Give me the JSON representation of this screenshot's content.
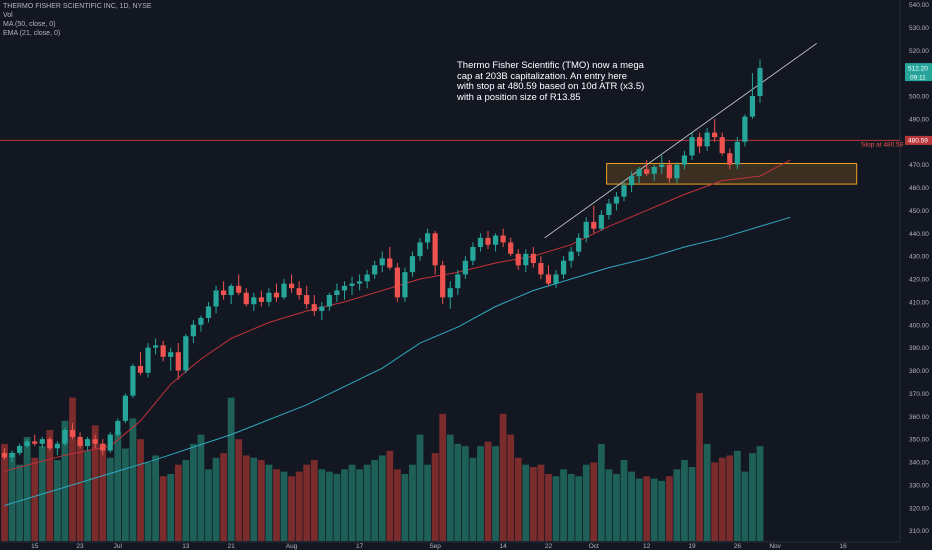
{
  "legend": {
    "title": "THERMO FISHER SCIENTIFIC INC, 1D, NYSE",
    "vol": "Vol",
    "ma": "MA (50, close, 0)",
    "ema": "EMA (21, close, 0)"
  },
  "annotation": {
    "lines": [
      "Thermo Fisher Scientific (TMO) now a mega",
      "cap at 203B capitalization. An entry here",
      "with stop at 480.59 based on 10d ATR (x3.5)",
      "with a position size of R13.85"
    ]
  },
  "colors": {
    "background": "#131722",
    "up": "#26a69a",
    "down": "#ef5350",
    "vol_up": "#1e5f58",
    "vol_down": "#7a2b2b",
    "ma50": "#2fa8bd",
    "ema21": "#c2323a",
    "stop_line": "#b8383b",
    "zone": "#f0a020",
    "trendline": "#d1d4dc",
    "axis_text": "#b2b5be"
  },
  "chart_data": {
    "type": "candlestick",
    "price_axis": {
      "min": 305,
      "max": 540,
      "ticks": [
        540,
        530,
        520,
        510,
        500,
        490,
        480,
        470,
        460,
        450,
        440,
        430,
        420,
        410,
        400,
        390,
        380,
        370,
        360,
        350,
        340,
        330,
        320,
        310
      ]
    },
    "x_axis_labels": [
      {
        "label": "15",
        "index": 4
      },
      {
        "label": "23",
        "index": 10
      },
      {
        "label": "Jul",
        "index": 15
      },
      {
        "label": "13",
        "index": 24
      },
      {
        "label": "21",
        "index": 30
      },
      {
        "label": "Aug",
        "index": 38
      },
      {
        "label": "17",
        "index": 47
      },
      {
        "label": "Sep",
        "index": 57
      },
      {
        "label": "14",
        "index": 66
      },
      {
        "label": "22",
        "index": 72
      },
      {
        "label": "Oct",
        "index": 78
      },
      {
        "label": "12",
        "index": 85
      },
      {
        "label": "19",
        "index": 91
      },
      {
        "label": "26",
        "index": 97
      },
      {
        "label": "Nov",
        "index": 102
      },
      {
        "label": "16",
        "index": 111
      }
    ],
    "current_price_label": "512.20",
    "countdown_label": "09:11",
    "stop_level": {
      "value": 480.59,
      "axis_label": "480.59",
      "text": "Stop at 480.59"
    },
    "zone": {
      "from_index": 79.7,
      "to_index": 112.8,
      "low": 461.5,
      "high": 470.5
    },
    "trendline": {
      "from_index": 71.5,
      "from_value": 438,
      "to_index": 107.5,
      "to_value": 523
    },
    "candles": [
      [
        344,
        346,
        341,
        342
      ],
      [
        342,
        345,
        340,
        344
      ],
      [
        344,
        348,
        343,
        347
      ],
      [
        347,
        350,
        346,
        349
      ],
      [
        349,
        352,
        347,
        348
      ],
      [
        348,
        351,
        346,
        350
      ],
      [
        350,
        351,
        345,
        346
      ],
      [
        346,
        349,
        343,
        348
      ],
      [
        348,
        355,
        347,
        354
      ],
      [
        354,
        357,
        350,
        351
      ],
      [
        351,
        353,
        346,
        347
      ],
      [
        347,
        351,
        345,
        350
      ],
      [
        350,
        352,
        346,
        348
      ],
      [
        348,
        350,
        343,
        345
      ],
      [
        345,
        353,
        344,
        352
      ],
      [
        352,
        359,
        351,
        358
      ],
      [
        358,
        370,
        357,
        369
      ],
      [
        369,
        383,
        368,
        382
      ],
      [
        382,
        388,
        378,
        379
      ],
      [
        379,
        392,
        377,
        390
      ],
      [
        390,
        394,
        387,
        391
      ],
      [
        391,
        393,
        384,
        386
      ],
      [
        386,
        390,
        380,
        388
      ],
      [
        388,
        392,
        376,
        380
      ],
      [
        380,
        396,
        379,
        395
      ],
      [
        395,
        402,
        392,
        400
      ],
      [
        400,
        404,
        397,
        403
      ],
      [
        403,
        410,
        401,
        408
      ],
      [
        408,
        417,
        405,
        415
      ],
      [
        415,
        419,
        411,
        413
      ],
      [
        413,
        418,
        409,
        417
      ],
      [
        417,
        422,
        413,
        414
      ],
      [
        414,
        416,
        408,
        409
      ],
      [
        409,
        414,
        406,
        412
      ],
      [
        412,
        415,
        408,
        410
      ],
      [
        410,
        416,
        408,
        414
      ],
      [
        414,
        418,
        410,
        412
      ],
      [
        412,
        420,
        411,
        418
      ],
      [
        418,
        422,
        414,
        416
      ],
      [
        416,
        419,
        411,
        413
      ],
      [
        413,
        417,
        407,
        409
      ],
      [
        409,
        413,
        404,
        406
      ],
      [
        406,
        410,
        402,
        408
      ],
      [
        408,
        414,
        406,
        413
      ],
      [
        413,
        418,
        410,
        415
      ],
      [
        415,
        419,
        411,
        417
      ],
      [
        417,
        421,
        413,
        418
      ],
      [
        418,
        422,
        415,
        419
      ],
      [
        419,
        424,
        416,
        422
      ],
      [
        422,
        428,
        420,
        426
      ],
      [
        426,
        432,
        423,
        429
      ],
      [
        429,
        434,
        424,
        425
      ],
      [
        425,
        427,
        410,
        412
      ],
      [
        412,
        425,
        410,
        423
      ],
      [
        423,
        432,
        421,
        430
      ],
      [
        430,
        438,
        428,
        436
      ],
      [
        436,
        442,
        433,
        440
      ],
      [
        440,
        441,
        422,
        426
      ],
      [
        426,
        428,
        409,
        412
      ],
      [
        412,
        419,
        407,
        416
      ],
      [
        416,
        424,
        413,
        422
      ],
      [
        422,
        430,
        420,
        428
      ],
      [
        428,
        436,
        426,
        434
      ],
      [
        434,
        440,
        432,
        438
      ],
      [
        438,
        441,
        433,
        435
      ],
      [
        435,
        440,
        432,
        439
      ],
      [
        439,
        442,
        434,
        436
      ],
      [
        436,
        438,
        430,
        431
      ],
      [
        431,
        433,
        424,
        426
      ],
      [
        426,
        433,
        423,
        431
      ],
      [
        431,
        434,
        425,
        427
      ],
      [
        427,
        430,
        420,
        422
      ],
      [
        422,
        426,
        417,
        418
      ],
      [
        418,
        424,
        416,
        422
      ],
      [
        422,
        430,
        420,
        428
      ],
      [
        428,
        434,
        425,
        432
      ],
      [
        432,
        440,
        430,
        438
      ],
      [
        438,
        447,
        436,
        445
      ],
      [
        445,
        452,
        440,
        442
      ],
      [
        442,
        450,
        441,
        448
      ],
      [
        448,
        455,
        446,
        453
      ],
      [
        453,
        458,
        450,
        456
      ],
      [
        456,
        463,
        454,
        461
      ],
      [
        461,
        467,
        458,
        465
      ],
      [
        465,
        469,
        462,
        468
      ],
      [
        468,
        472,
        465,
        466
      ],
      [
        466,
        470,
        463,
        469
      ],
      [
        469,
        474,
        466,
        470
      ],
      [
        470,
        472,
        462,
        464
      ],
      [
        464,
        471,
        462,
        470
      ],
      [
        470,
        476,
        468,
        474
      ],
      [
        474,
        484,
        472,
        482
      ],
      [
        482,
        484,
        475,
        478
      ],
      [
        478,
        486,
        476,
        484
      ],
      [
        484,
        490,
        480,
        482
      ],
      [
        482,
        484,
        474,
        475
      ],
      [
        475,
        477,
        468,
        470
      ],
      [
        470,
        482,
        468,
        480
      ],
      [
        480,
        492,
        478,
        491
      ],
      [
        491,
        510,
        490,
        500
      ],
      [
        500,
        516,
        497,
        512.2
      ]
    ],
    "ma50": [
      [
        0,
        321
      ],
      [
        10,
        331
      ],
      [
        20,
        341
      ],
      [
        30,
        352
      ],
      [
        40,
        365
      ],
      [
        50,
        381
      ],
      [
        55,
        392
      ],
      [
        60,
        399
      ],
      [
        65,
        408
      ],
      [
        70,
        415
      ],
      [
        75,
        420
      ],
      [
        80,
        425
      ],
      [
        85,
        429
      ],
      [
        90,
        434
      ],
      [
        95,
        438
      ],
      [
        100,
        443
      ],
      [
        104,
        447
      ]
    ],
    "ema21": [
      [
        0,
        336
      ],
      [
        8,
        343
      ],
      [
        14,
        347
      ],
      [
        18,
        358
      ],
      [
        22,
        374
      ],
      [
        26,
        385
      ],
      [
        30,
        394
      ],
      [
        35,
        401
      ],
      [
        40,
        406
      ],
      [
        45,
        410
      ],
      [
        50,
        415
      ],
      [
        55,
        420
      ],
      [
        60,
        423
      ],
      [
        65,
        427
      ],
      [
        70,
        430
      ],
      [
        75,
        435
      ],
      [
        80,
        443
      ],
      [
        85,
        450
      ],
      [
        90,
        457
      ],
      [
        95,
        463
      ],
      [
        100,
        465
      ],
      [
        104,
        472
      ]
    ],
    "volumes": [
      0.42,
      0.38,
      0.33,
      0.45,
      0.36,
      0.41,
      0.48,
      0.35,
      0.52,
      0.62,
      0.44,
      0.39,
      0.5,
      0.42,
      0.36,
      0.47,
      0.4,
      0.53,
      0.44,
      0.34,
      0.37,
      0.28,
      0.29,
      0.33,
      0.35,
      0.42,
      0.46,
      0.31,
      0.36,
      0.38,
      0.62,
      0.44,
      0.37,
      0.36,
      0.35,
      0.33,
      0.31,
      0.3,
      0.28,
      0.3,
      0.33,
      0.35,
      0.31,
      0.3,
      0.29,
      0.31,
      0.33,
      0.31,
      0.33,
      0.35,
      0.37,
      0.39,
      0.31,
      0.29,
      0.33,
      0.46,
      0.33,
      0.38,
      0.55,
      0.46,
      0.42,
      0.41,
      0.36,
      0.41,
      0.43,
      0.41,
      0.55,
      0.46,
      0.36,
      0.33,
      0.32,
      0.33,
      0.29,
      0.28,
      0.31,
      0.29,
      0.28,
      0.33,
      0.34,
      0.42,
      0.31,
      0.29,
      0.35,
      0.3,
      0.27,
      0.28,
      0.27,
      0.26,
      0.28,
      0.31,
      0.35,
      0.32,
      0.64,
      0.42,
      0.34,
      0.36,
      0.37,
      0.39,
      0.3,
      0.38,
      0.41
    ]
  }
}
